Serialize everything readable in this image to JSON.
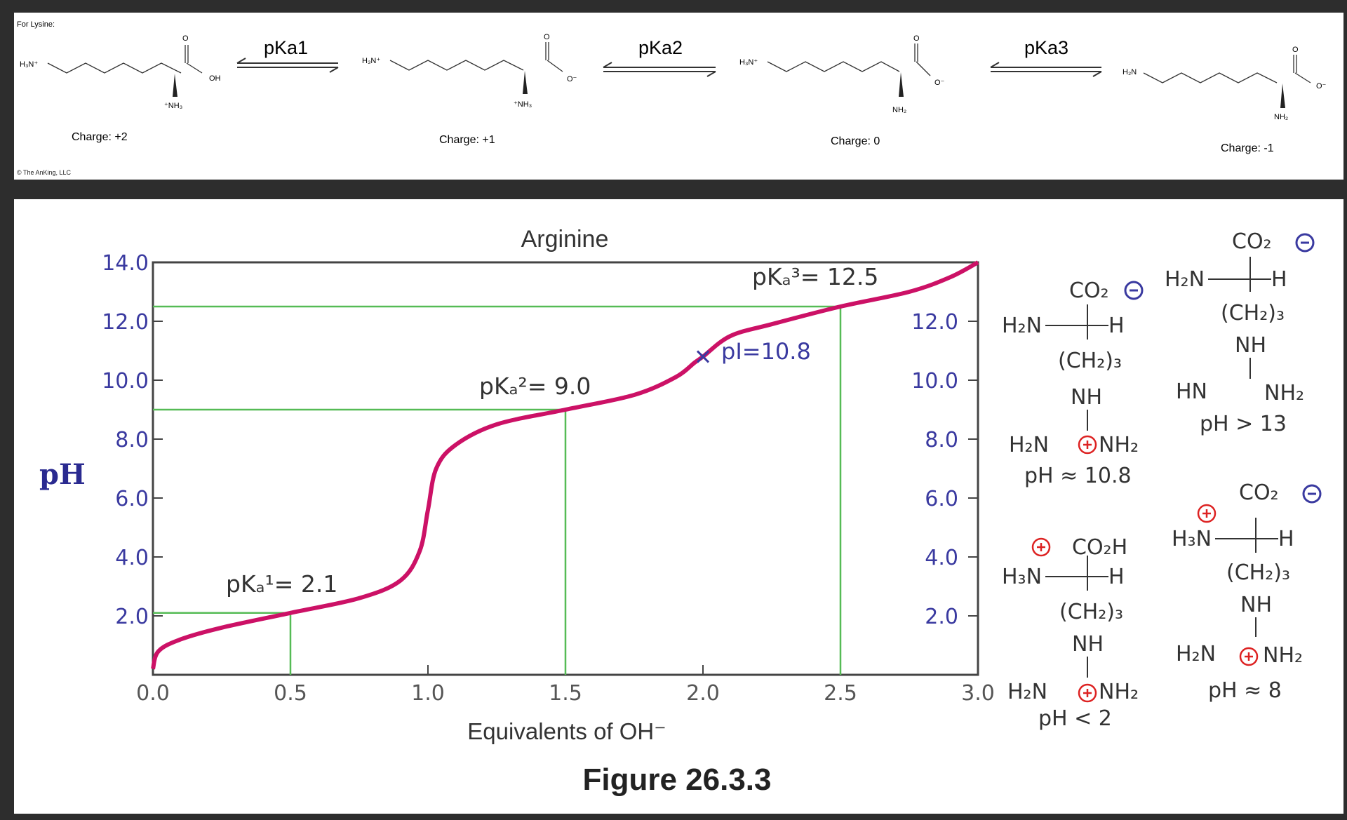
{
  "lysine": {
    "heading": "For Lysine:",
    "copyright": "© The AnKing, LLC",
    "arrows": [
      "pKa1",
      "pKa2",
      "pKa3"
    ],
    "species": [
      {
        "amine": "H₃N⁺",
        "acid": "OH",
        "alpha": "⁺NH₃",
        "charge": "Charge: +2"
      },
      {
        "amine": "H₃N⁺",
        "acid": "O⁻",
        "alpha": "⁺NH₃",
        "charge": "Charge: +1"
      },
      {
        "amine": "H₃N⁺",
        "acid": "O⁻",
        "alpha": "NH₂",
        "charge": "Charge: 0"
      },
      {
        "amine": "H₂N",
        "acid": "O⁻",
        "alpha": "NH₂",
        "charge": "Charge: -1"
      }
    ],
    "oxygen": "O"
  },
  "arginine": {
    "title": "Arginine",
    "y_axis_label": "pH",
    "x_axis_label": "Equivalents of OH⁻",
    "figure_caption": "Figure 26.3.3",
    "left_ticks": [
      "14.0",
      "12.0",
      "10.0",
      "8.0",
      "6.0",
      "4.0",
      "2.0"
    ],
    "right_ticks": [
      "12.0",
      "10.0",
      "8.0",
      "6.0",
      "4.0",
      "2.0"
    ],
    "x_ticks": [
      "0.0",
      "0.5",
      "1.0",
      "1.5",
      "2.0",
      "2.5",
      "3.0"
    ],
    "annotations": {
      "pka1": "pKₐ¹= 2.1",
      "pka2": "pKₐ²= 9.0",
      "pka3": "pKₐ³= 12.5",
      "pi": "pI=10.8"
    },
    "structures": {
      "co2_minus": "CO₂",
      "co2h": "CO₂H",
      "h2n": "H₂N",
      "h3n": "H₃N",
      "h": "H",
      "ch2_3": "(CH₂)₃",
      "nh": "NH",
      "hn": "HN",
      "nh2": "NH₂",
      "ph_108": "pH ≈ 10.8",
      "ph_13": "pH > 13",
      "ph_2": "pH < 2",
      "ph_8": "pH ≈ 8"
    },
    "colors": {
      "curve": "#cc1166",
      "guide": "#55bb55",
      "tick_text": "#3a3aa0",
      "charge_circle": "#dd2222"
    }
  },
  "chart_data": {
    "type": "line",
    "title": "Arginine",
    "xlabel": "Equivalents of OH⁻",
    "ylabel": "pH",
    "xlim": [
      0,
      3
    ],
    "ylim": [
      0,
      14
    ],
    "x": [
      0.0,
      0.02,
      0.1,
      0.25,
      0.5,
      0.75,
      0.9,
      0.97,
      1.0,
      1.03,
      1.1,
      1.25,
      1.5,
      1.75,
      1.9,
      1.97,
      2.0,
      2.1,
      2.25,
      2.5,
      2.75,
      2.9,
      3.0
    ],
    "series": [
      {
        "values": [
          0.2,
          0.8,
          1.2,
          1.6,
          2.1,
          2.6,
          3.2,
          4.2,
          5.6,
          7.0,
          7.8,
          8.5,
          9.0,
          9.5,
          10.1,
          10.6,
          10.8,
          11.5,
          11.9,
          12.5,
          13.0,
          13.5,
          14.0
        ]
      }
    ],
    "reference_lines": [
      {
        "x": 0.5,
        "y": 2.1
      },
      {
        "x": 1.5,
        "y": 9.0
      },
      {
        "x": 2.5,
        "y": 12.5
      }
    ],
    "marker": {
      "x": 2.0,
      "y": 10.8
    }
  }
}
